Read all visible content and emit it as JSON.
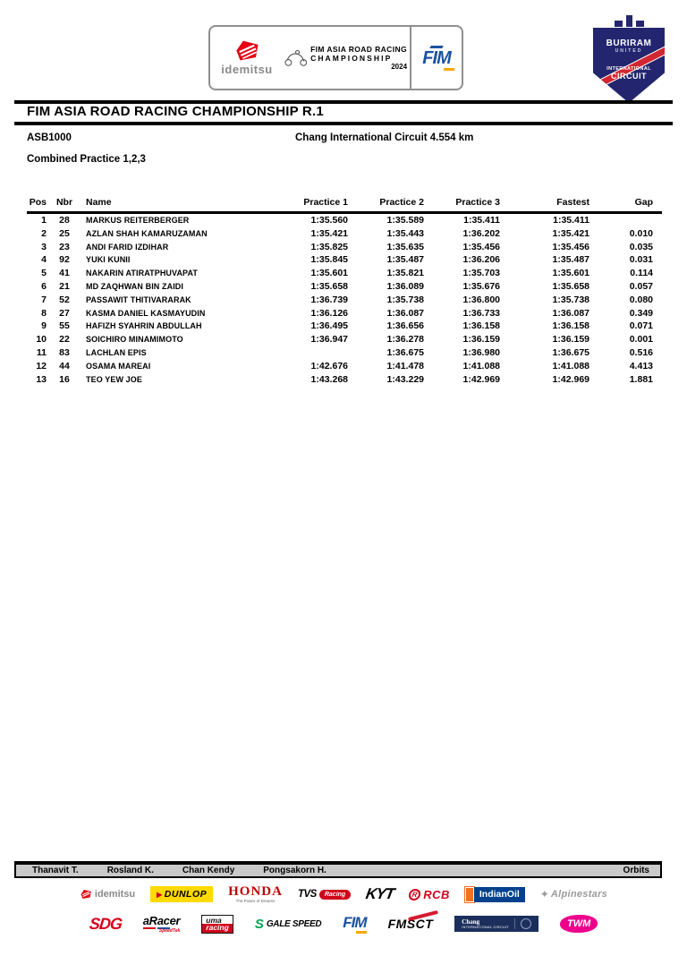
{
  "header": {
    "sponsor_box": {
      "idemitsu_label": "idemitsu",
      "series_line1": "FIM ASIA ROAD RACING",
      "series_line2": "CHAMPIONSHIP",
      "year": "2024",
      "fim_label": "FIM"
    },
    "circuit_badge": {
      "line1": "BURIRAM",
      "line2": "UNITED",
      "line3": "INTERNATIONAL",
      "line4": "CIRCUIT"
    }
  },
  "title": "FIM ASIA ROAD RACING CHAMPIONSHIP R.1",
  "event": {
    "category": "ASB1000",
    "circuit": "Chang International Circuit 4.554 km",
    "session": "Combined Practice 1,2,3"
  },
  "results_table": {
    "headers": [
      "Pos",
      "Nbr",
      "Name",
      "Practice 1",
      "Practice 2",
      "Practice 3",
      "Fastest",
      "Gap"
    ],
    "rows": [
      {
        "pos": "1",
        "nbr": "28",
        "name": "MARKUS REITERBERGER",
        "p1": "1:35.560",
        "p2": "1:35.589",
        "p3": "1:35.411",
        "fastest": "1:35.411",
        "gap": ""
      },
      {
        "pos": "2",
        "nbr": "25",
        "name": "AZLAN SHAH KAMARUZAMAN",
        "p1": "1:35.421",
        "p2": "1:35.443",
        "p3": "1:36.202",
        "fastest": "1:35.421",
        "gap": "0.010"
      },
      {
        "pos": "3",
        "nbr": "23",
        "name": "ANDI FARID IZDIHAR",
        "p1": "1:35.825",
        "p2": "1:35.635",
        "p3": "1:35.456",
        "fastest": "1:35.456",
        "gap": "0.035"
      },
      {
        "pos": "4",
        "nbr": "92",
        "name": "YUKI KUNII",
        "p1": "1:35.845",
        "p2": "1:35.487",
        "p3": "1:36.206",
        "fastest": "1:35.487",
        "gap": "0.031"
      },
      {
        "pos": "5",
        "nbr": "41",
        "name": "NAKARIN ATIRATPHUVAPAT",
        "p1": "1:35.601",
        "p2": "1:35.821",
        "p3": "1:35.703",
        "fastest": "1:35.601",
        "gap": "0.114"
      },
      {
        "pos": "6",
        "nbr": "21",
        "name": "MD ZAQHWAN BIN ZAIDI",
        "p1": "1:35.658",
        "p2": "1:36.089",
        "p3": "1:35.676",
        "fastest": "1:35.658",
        "gap": "0.057"
      },
      {
        "pos": "7",
        "nbr": "52",
        "name": "PASSAWIT THITIVARARAK",
        "p1": "1:36.739",
        "p2": "1:35.738",
        "p3": "1:36.800",
        "fastest": "1:35.738",
        "gap": "0.080"
      },
      {
        "pos": "8",
        "nbr": "27",
        "name": "KASMA DANIEL KASMAYUDIN",
        "p1": "1:36.126",
        "p2": "1:36.087",
        "p3": "1:36.733",
        "fastest": "1:36.087",
        "gap": "0.349"
      },
      {
        "pos": "9",
        "nbr": "55",
        "name": "HAFIZH SYAHRIN ABDULLAH",
        "p1": "1:36.495",
        "p2": "1:36.656",
        "p3": "1:36.158",
        "fastest": "1:36.158",
        "gap": "0.071"
      },
      {
        "pos": "10",
        "nbr": "22",
        "name": "SOICHIRO MINAMIMOTO",
        "p1": "1:36.947",
        "p2": "1:36.278",
        "p3": "1:36.159",
        "fastest": "1:36.159",
        "gap": "0.001"
      },
      {
        "pos": "11",
        "nbr": "83",
        "name": "LACHLAN EPIS",
        "p1": "",
        "p2": "1:36.675",
        "p3": "1:36.980",
        "fastest": "1:36.675",
        "gap": "0.516"
      },
      {
        "pos": "12",
        "nbr": "44",
        "name": "OSAMA MAREAI",
        "p1": "1:42.676",
        "p2": "1:41.478",
        "p3": "1:41.088",
        "fastest": "1:41.088",
        "gap": "4.413"
      },
      {
        "pos": "13",
        "nbr": "16",
        "name": "TEO YEW JOE",
        "p1": "1:43.268",
        "p2": "1:43.229",
        "p3": "1:42.969",
        "fastest": "1:42.969",
        "gap": "1.881"
      }
    ]
  },
  "footer": {
    "officials": [
      "Thanavit T.",
      "Rosland K.",
      "Chan Kendy",
      "Pongsakorn H."
    ],
    "timing_provider": "Orbits"
  },
  "sponsors": {
    "row1": {
      "idemitsu": "idemitsu",
      "dunlop": "DUNLOP",
      "honda": "HONDA",
      "honda_sub": "The Power of Dreams",
      "tvs": "TVS",
      "tvs_sub": "Racing",
      "kyt": "KYT",
      "rcb": "RCB",
      "rcb_mark": "R",
      "indianoil": "IndianOil",
      "alpinestars": "Alpinestars"
    },
    "row2": {
      "sdg": "SDG",
      "aracer": "aRacer",
      "aracer_sub": "SpeedTek",
      "uma_top": "uma",
      "uma_bottom": "racing",
      "galespeed_mark": "S",
      "galespeed": "GALE SPEED",
      "fim": "FIM",
      "fmsct": "FMSCT",
      "chang": "Chang",
      "chang_sub": "INTERNATIONAL CIRCUIT",
      "twm": "TWM"
    }
  },
  "colors": {
    "idemitsu_red": "#e60012",
    "dunlop_yellow": "#ffd900",
    "honda_red": "#c00000",
    "fim_blue": "#1b52a0",
    "fim_asia_yellow": "#f7a800",
    "rcb_red": "#d0021b",
    "indianoil_navy": "#00418e",
    "indianoil_orange": "#f37021",
    "sdg_red": "#d6001c",
    "galespeed_green": "#00a651",
    "chang_navy": "#1c2f5c",
    "twm_magenta": "#ec008c",
    "buriram_navy": "#23266f",
    "officials_bar_gray": "#c9c9c9"
  }
}
